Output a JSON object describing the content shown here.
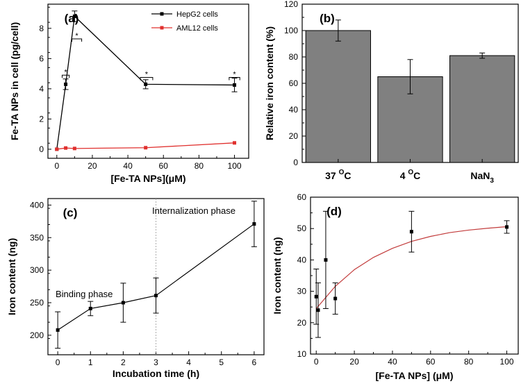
{
  "chart_data": [
    {
      "panel": "(a)",
      "type": "line",
      "xlabel": "[Fe-TA NPs](μM)",
      "ylabel": "Fe-TA NPs in cell (pg/cell)",
      "xlim": [
        -5,
        108
      ],
      "ylim": [
        -0.6,
        9.6
      ],
      "xticks": [
        0,
        20,
        40,
        60,
        80,
        100
      ],
      "yticks": [
        0,
        2,
        4,
        6,
        8
      ],
      "xtick_labels": [
        "0",
        "20",
        "40",
        "60",
        "80",
        "100"
      ],
      "ytick_labels": [
        "0",
        "2",
        "4",
        "6",
        "8"
      ],
      "series": [
        {
          "name": "HepG2 cells",
          "color": "#000000",
          "x": [
            0,
            5,
            10,
            50,
            100
          ],
          "y": [
            0,
            4.3,
            8.8,
            4.3,
            4.25
          ],
          "err": [
            0,
            0.35,
            0.35,
            0.3,
            0.45
          ]
        },
        {
          "name": "AML12 cells",
          "color": "#e0302e",
          "x": [
            0,
            5,
            10,
            50,
            100
          ],
          "y": [
            0,
            0.08,
            0.05,
            0.1,
            0.42
          ],
          "err": [
            0,
            0,
            0,
            0,
            0
          ]
        }
      ],
      "significance": [
        {
          "label": "*",
          "x1": 3,
          "x2": 7,
          "y": 4.9
        },
        {
          "label": "*",
          "x1": 8.5,
          "x2": 14,
          "y": 7.3
        },
        {
          "label": "*",
          "x1": 47,
          "x2": 54,
          "y": 4.75
        },
        {
          "label": "*",
          "x1": 97,
          "x2": 103,
          "y": 4.75
        }
      ]
    },
    {
      "panel": "(b)",
      "type": "bar",
      "categories": [
        "37 °C",
        "4 °C",
        "NaN3"
      ],
      "values": [
        100,
        65,
        81
      ],
      "errors": [
        8,
        13,
        2
      ],
      "bar_color": "#808080",
      "ylabel": "Relative iron content (%)",
      "ylim": [
        0,
        120
      ],
      "yticks": [
        0,
        20,
        40,
        60,
        80,
        100,
        120
      ],
      "ytick_labels": [
        "0",
        "20",
        "40",
        "60",
        "80",
        "100",
        "120"
      ],
      "cat_labels": [
        {
          "main": "37 ",
          "sup": "O",
          "rest": "C"
        },
        {
          "main": "4 ",
          "sup": "O",
          "rest": "C"
        },
        {
          "main": "NaN",
          "sub": "3",
          "rest": ""
        }
      ]
    },
    {
      "panel": "(c)",
      "type": "line",
      "xlabel": "Incubation time (h)",
      "ylabel": "Iron content (ng)",
      "xlim": [
        -0.3,
        6.3
      ],
      "ylim": [
        170,
        410
      ],
      "xticks": [
        0,
        1,
        2,
        3,
        4,
        5,
        6
      ],
      "yticks": [
        200,
        250,
        300,
        350,
        400
      ],
      "xtick_labels": [
        "0",
        "1",
        "2",
        "3",
        "4",
        "5",
        "6"
      ],
      "ytick_labels": [
        "200",
        "250",
        "300",
        "350",
        "400"
      ],
      "series": [
        {
          "name": "Iron content",
          "color": "#000000",
          "x": [
            0,
            1,
            2,
            3,
            6
          ],
          "y": [
            208,
            241,
            250,
            261,
            371
          ],
          "err": [
            28,
            11,
            30,
            27,
            35
          ]
        }
      ],
      "divider_x": 3,
      "annotations": [
        "Binding phase",
        "Internalization phase"
      ]
    },
    {
      "panel": "(d)",
      "type": "scatter",
      "xlabel": "[Fe-TA NPs] (μM)",
      "ylabel": "Iron content (ng)",
      "xlim": [
        -3,
        106
      ],
      "ylim": [
        10,
        60
      ],
      "xticks": [
        0,
        20,
        40,
        60,
        80,
        100
      ],
      "yticks": [
        10,
        20,
        30,
        40,
        50,
        60
      ],
      "xtick_labels": [
        "0",
        "20",
        "40",
        "60",
        "80",
        "100"
      ],
      "ytick_labels": [
        "10",
        "20",
        "30",
        "40",
        "50",
        "60"
      ],
      "series": [
        {
          "name": "Iron content",
          "color": "#000000",
          "x": [
            0,
            1,
            5,
            10,
            50,
            100
          ],
          "y": [
            28.3,
            24,
            40,
            27.7,
            49,
            50.5
          ],
          "err": [
            8.8,
            8.7,
            15.5,
            5,
            6.5,
            2
          ]
        }
      ],
      "fit": {
        "color": "#c23b3b",
        "x": [
          0,
          10,
          20,
          30,
          40,
          50,
          60,
          70,
          80,
          90,
          100
        ],
        "y": [
          24.5,
          31.6,
          36.9,
          40.8,
          43.7,
          45.9,
          47.5,
          48.7,
          49.5,
          50.1,
          50.6
        ]
      }
    }
  ]
}
